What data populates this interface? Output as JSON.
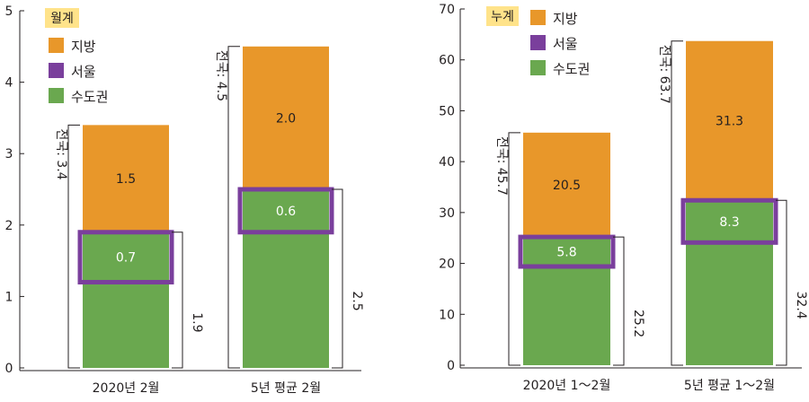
{
  "chart_data": [
    {
      "type": "bar",
      "stacked": true,
      "legend_title": "월계",
      "legend_position": "top-left",
      "ylim": [
        0,
        5
      ],
      "yticks": [
        0,
        1,
        2,
        3,
        4,
        5
      ],
      "grid": false,
      "categories": [
        "2020년 2월",
        "5년 평균 2월"
      ],
      "series": [
        {
          "name": "수도권",
          "values": [
            1.9,
            2.5
          ],
          "color": "#6aa84f"
        },
        {
          "name": "서울",
          "values": [
            0.7,
            0.6
          ],
          "color": "#7a3f9c",
          "shown_as": "outline"
        },
        {
          "name": "지방",
          "values": [
            1.5,
            2.0
          ],
          "color": "#e8972a"
        }
      ],
      "bar_labels": [
        {
          "bar": 0,
          "seoul": "0.7",
          "jibang": "1.5",
          "sudo": "1.9",
          "total": "전국: 3.4"
        },
        {
          "bar": 1,
          "seoul": "0.6",
          "jibang": "2.0",
          "sudo": "2.5",
          "total": "전국: 4.5"
        }
      ]
    },
    {
      "type": "bar",
      "stacked": true,
      "legend_title": "누계",
      "legend_position": "top-left",
      "ylim": [
        0,
        70
      ],
      "yticks": [
        0,
        10,
        20,
        30,
        40,
        50,
        60,
        70
      ],
      "grid": false,
      "categories": [
        "2020년 1～2월",
        "5년 평균 1～2월"
      ],
      "series": [
        {
          "name": "수도권",
          "values": [
            25.2,
            32.4
          ],
          "color": "#6aa84f"
        },
        {
          "name": "서울",
          "values": [
            5.8,
            8.3
          ],
          "color": "#7a3f9c",
          "shown_as": "outline"
        },
        {
          "name": "지방",
          "values": [
            20.5,
            31.3
          ],
          "color": "#e8972a"
        }
      ],
      "bar_labels": [
        {
          "bar": 0,
          "seoul": "5.8",
          "jibang": "20.5",
          "sudo": "25.2",
          "total": "전국: 45.7"
        },
        {
          "bar": 1,
          "seoul": "8.3",
          "jibang": "31.3",
          "sudo": "32.4",
          "total": "전국: 63.7"
        }
      ]
    }
  ],
  "legend_items": [
    {
      "key": "지방",
      "label": "지방"
    },
    {
      "key": "서울",
      "label": "서울"
    },
    {
      "key": "수도권",
      "label": "수도권"
    }
  ],
  "colors": {
    "jibang": "#e8972a",
    "seoul": "#7a3f9c",
    "sudo": "#6aa84f",
    "legend_title_bg": "#ffe38a",
    "axis": "#231f20"
  }
}
